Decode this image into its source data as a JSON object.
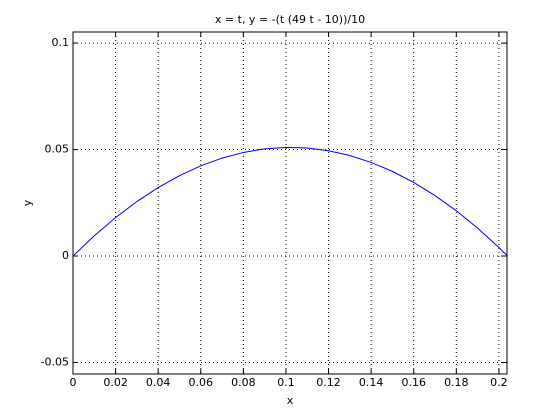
{
  "chart_data": {
    "type": "line",
    "title": "x = t, y = -(t (49 t - 10))/10",
    "x_label": "x",
    "y_label": "y",
    "x": [
      0,
      0.01,
      0.02,
      0.03,
      0.04,
      0.05,
      0.06,
      0.07,
      0.08,
      0.09,
      0.1,
      0.11,
      0.12,
      0.13,
      0.14,
      0.15,
      0.16,
      0.17,
      0.18,
      0.19,
      0.2,
      0.2041
    ],
    "series": [
      {
        "color": "#0000ff",
        "values": [
          0,
          0.00951,
          0.01804,
          0.02559,
          0.03216,
          0.03775,
          0.04236,
          0.04599,
          0.04864,
          0.05031,
          0.051,
          0.05071,
          0.04944,
          0.04719,
          0.04396,
          0.03975,
          0.03456,
          0.02839,
          0.02124,
          0.01311,
          0.004,
          0
        ]
      }
    ],
    "xlim": [
      0,
      0.2038
    ],
    "ylim": [
      -0.0554,
      0.1052
    ],
    "xticks": [
      0,
      0.02,
      0.04,
      0.06,
      0.08,
      0.1,
      0.12,
      0.14,
      0.16,
      0.18,
      0.2
    ],
    "yticks": [
      -0.05,
      0,
      0.05,
      0.1
    ],
    "grid": true
  }
}
